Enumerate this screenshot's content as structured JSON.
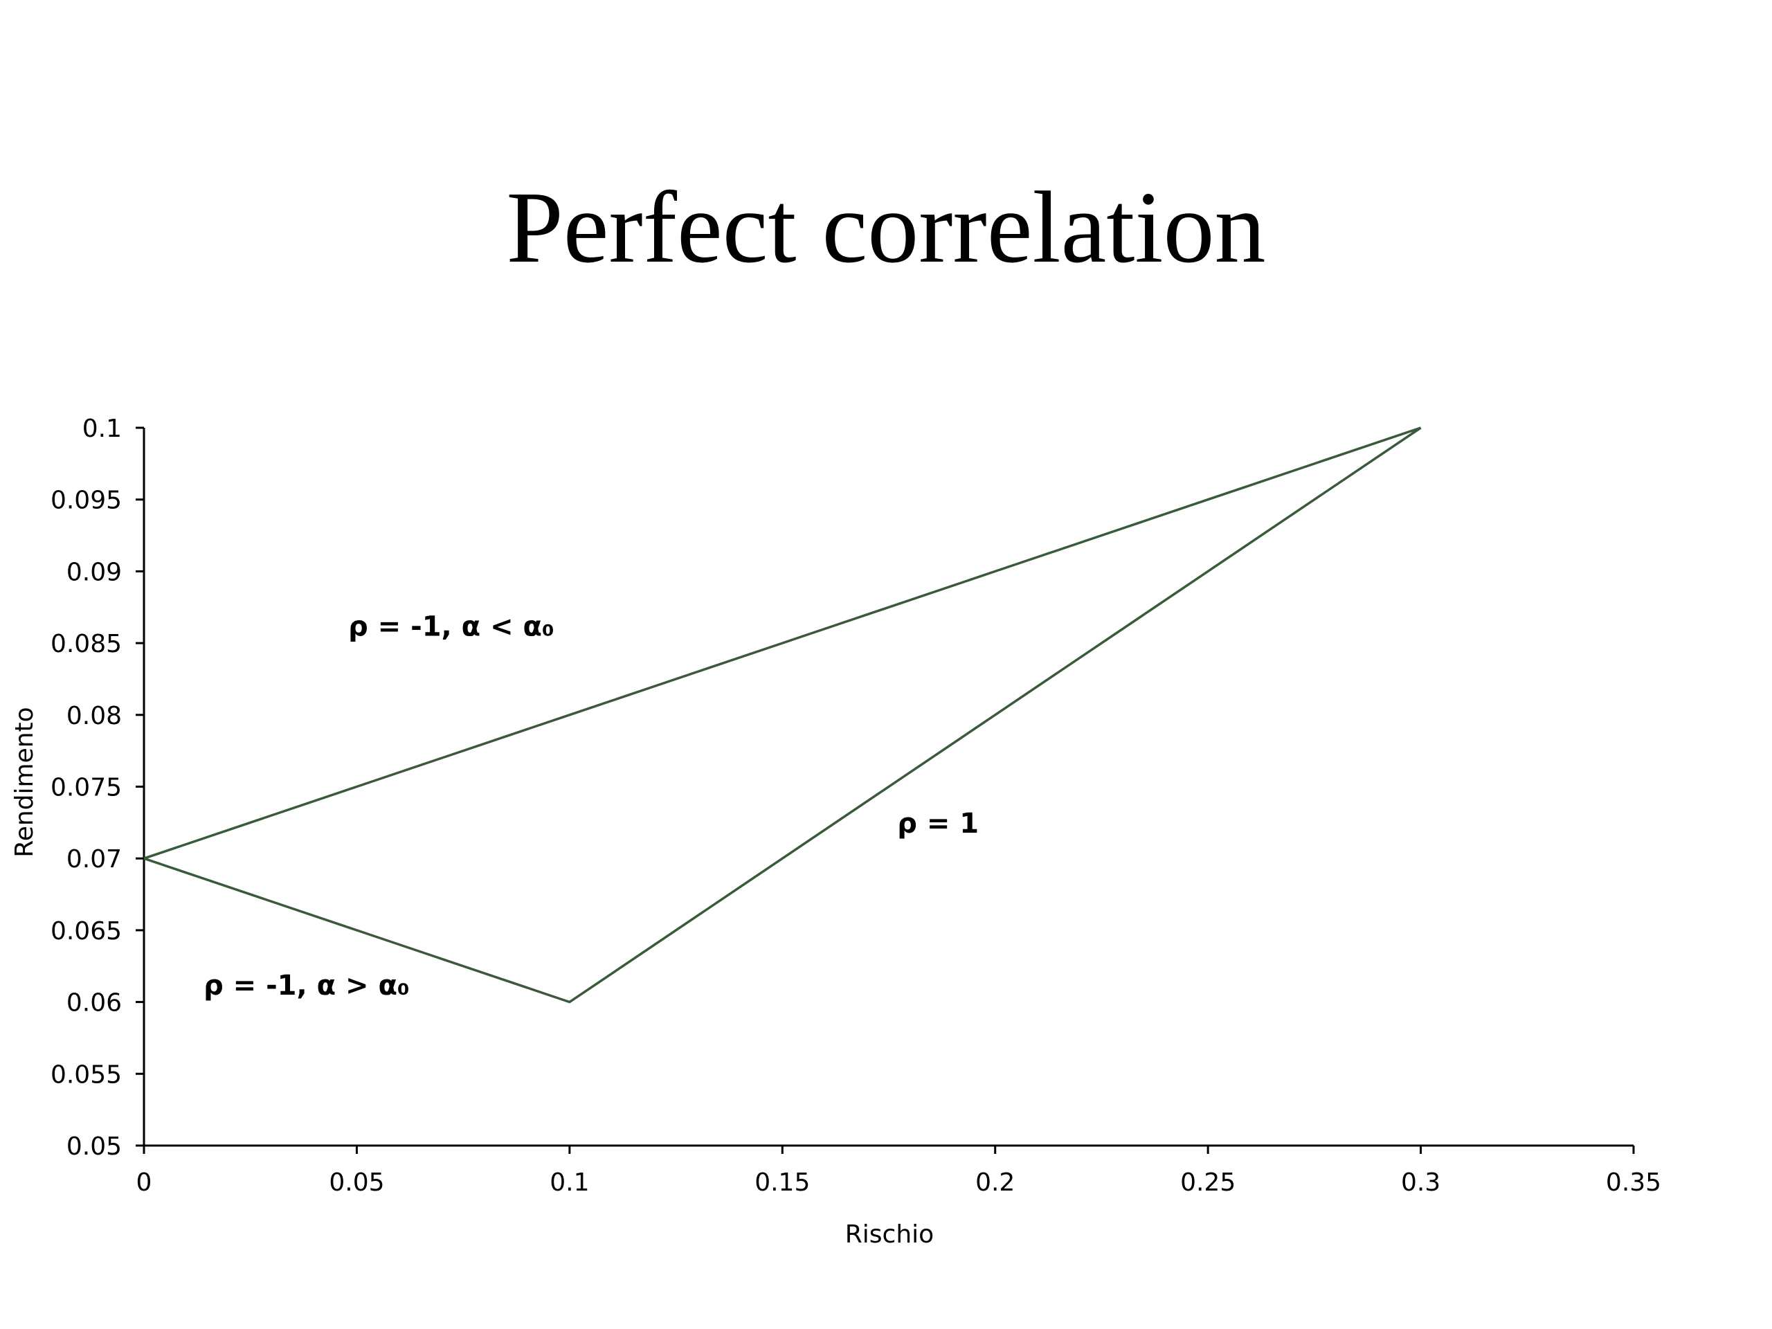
{
  "slide": {
    "title": "Perfect correlation"
  },
  "chart_data": {
    "type": "line",
    "xlabel": "Rischio",
    "ylabel": "Rendimento",
    "xlim": [
      0,
      0.35
    ],
    "ylim": [
      0.05,
      0.1
    ],
    "x_ticks": [
      "0",
      "0.05",
      "0.1",
      "0.15",
      "0.2",
      "0.25",
      "0.3",
      "0.35"
    ],
    "y_ticks": [
      "0.1",
      "0.095",
      "0.09",
      "0.085",
      "0.08",
      "0.075",
      "0.07",
      "0.065",
      "0.06",
      "0.055",
      "0.05"
    ],
    "grid": false,
    "line_color": "#3a5a3a",
    "series": [
      {
        "points": [
          [
            0,
            0.07
          ],
          [
            0.05,
            0.075
          ],
          [
            0.1,
            0.08
          ],
          [
            0.15,
            0.085
          ],
          [
            0.2,
            0.09
          ],
          [
            0.25,
            0.095
          ],
          [
            0.3,
            0.1
          ]
        ]
      },
      {
        "points": [
          [
            0,
            0.07
          ],
          [
            0.05,
            0.065
          ],
          [
            0.1,
            0.06
          ],
          [
            0.15,
            0.07
          ],
          [
            0.2,
            0.08
          ],
          [
            0.25,
            0.09
          ],
          [
            0.3,
            0.1
          ]
        ]
      }
    ],
    "annotations": [
      {
        "text": "ρ = -1, α < α₀",
        "x": 0.048,
        "y": 0.0855
      },
      {
        "text": "ρ = 1",
        "x": 0.177,
        "y": 0.0718
      },
      {
        "text": "ρ = -1, α > α₀",
        "x": 0.014,
        "y": 0.0605
      }
    ]
  }
}
